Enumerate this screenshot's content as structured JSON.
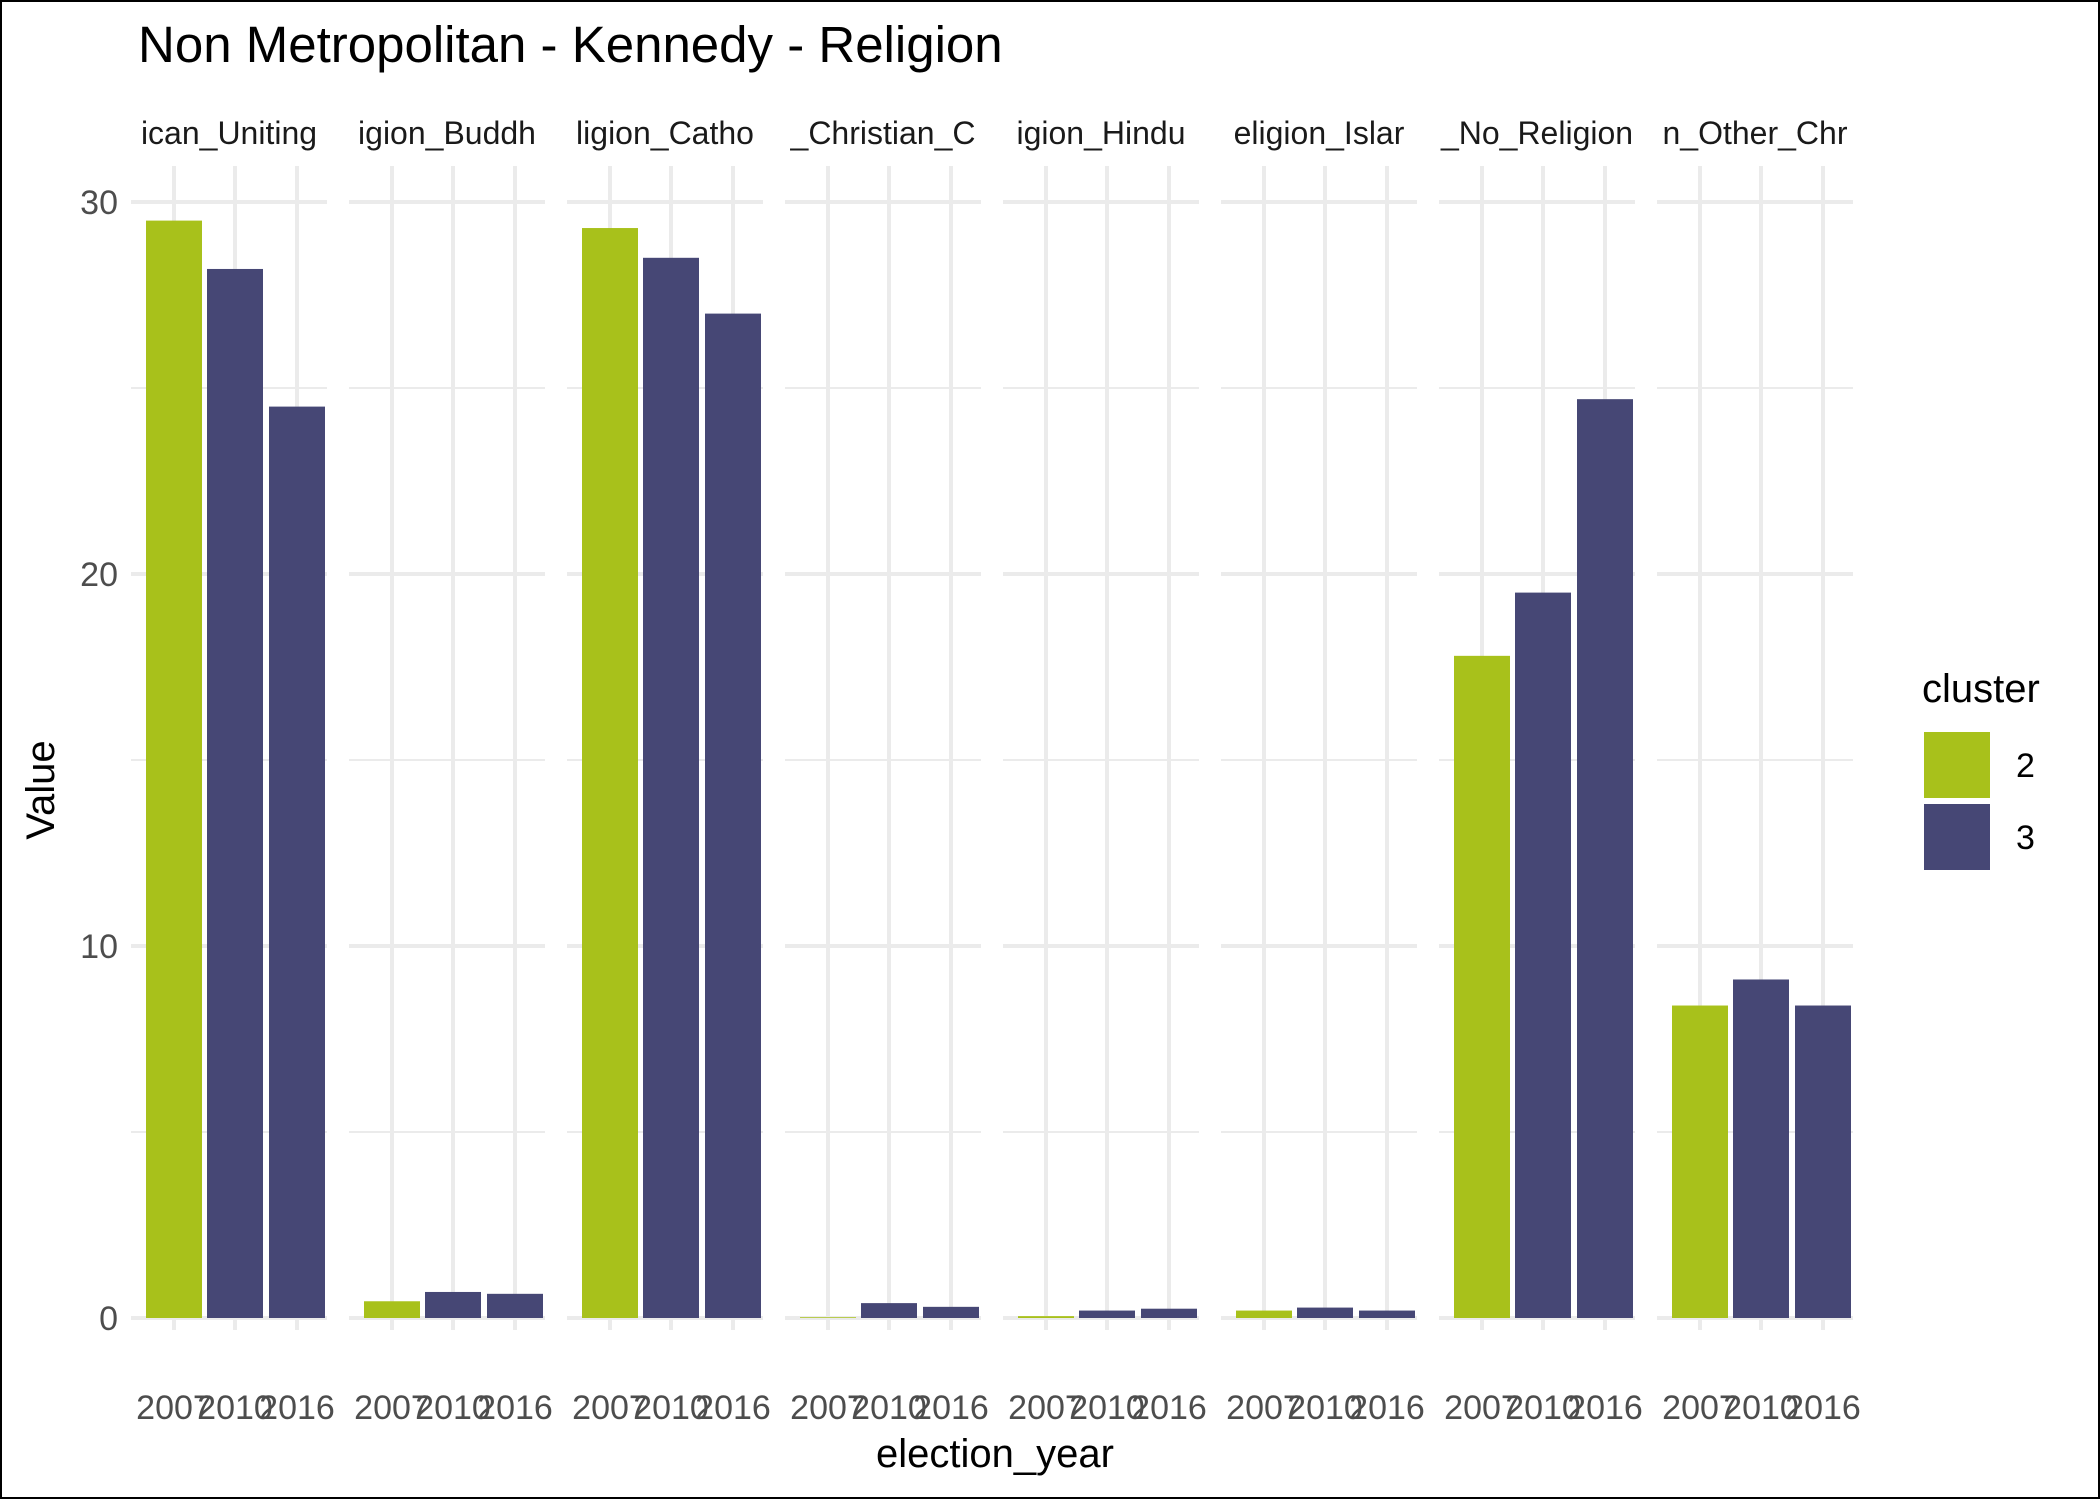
{
  "chart_data": {
    "type": "bar",
    "title": "Non Metropolitan - Kennedy - Religion",
    "xlabel": "election_year",
    "ylabel": "Value",
    "ylim": [
      0,
      31
    ],
    "yticks": [
      0,
      10,
      20,
      30
    ],
    "grid": true,
    "legend": {
      "title": "cluster",
      "placement": "right",
      "entries": [
        {
          "name": "2",
          "color": "#a8c11b"
        },
        {
          "name": "3",
          "color": "#464775"
        }
      ]
    },
    "x_tick_labels": [
      "2007",
      "2010",
      "2016"
    ],
    "facets": [
      {
        "label": "ican_Uniting",
        "bars": [
          {
            "year": "2007",
            "cluster": "2",
            "value": 29.5
          },
          {
            "year": "2010",
            "cluster": "3",
            "value": 28.2
          },
          {
            "year": "2016",
            "cluster": "3",
            "value": 24.5
          }
        ]
      },
      {
        "label": "igion_Buddh",
        "bars": [
          {
            "year": "2007",
            "cluster": "2",
            "value": 0.45
          },
          {
            "year": "2010",
            "cluster": "3",
            "value": 0.7
          },
          {
            "year": "2016",
            "cluster": "3",
            "value": 0.65
          }
        ]
      },
      {
        "label": "ligion_Catho",
        "bars": [
          {
            "year": "2007",
            "cluster": "2",
            "value": 29.3
          },
          {
            "year": "2010",
            "cluster": "3",
            "value": 28.5
          },
          {
            "year": "2016",
            "cluster": "3",
            "value": 27.0
          }
        ]
      },
      {
        "label": "_Christian_C",
        "bars": [
          {
            "year": "2007",
            "cluster": "2",
            "value": 0.02
          },
          {
            "year": "2010",
            "cluster": "3",
            "value": 0.4
          },
          {
            "year": "2016",
            "cluster": "3",
            "value": 0.3
          }
        ]
      },
      {
        "label": "igion_Hindu",
        "bars": [
          {
            "year": "2007",
            "cluster": "2",
            "value": 0.05
          },
          {
            "year": "2010",
            "cluster": "3",
            "value": 0.2
          },
          {
            "year": "2016",
            "cluster": "3",
            "value": 0.25
          }
        ]
      },
      {
        "label": "eligion_Islar",
        "bars": [
          {
            "year": "2007",
            "cluster": "2",
            "value": 0.2
          },
          {
            "year": "2010",
            "cluster": "3",
            "value": 0.28
          },
          {
            "year": "2016",
            "cluster": "3",
            "value": 0.2
          }
        ]
      },
      {
        "label": "_No_Religion",
        "bars": [
          {
            "year": "2007",
            "cluster": "2",
            "value": 17.8
          },
          {
            "year": "2010",
            "cluster": "3",
            "value": 19.5
          },
          {
            "year": "2016",
            "cluster": "3",
            "value": 24.7
          }
        ]
      },
      {
        "label": "n_Other_Chr",
        "bars": [
          {
            "year": "2007",
            "cluster": "2",
            "value": 8.4
          },
          {
            "year": "2010",
            "cluster": "3",
            "value": 9.1
          },
          {
            "year": "2016",
            "cluster": "3",
            "value": 8.4
          }
        ]
      }
    ]
  }
}
